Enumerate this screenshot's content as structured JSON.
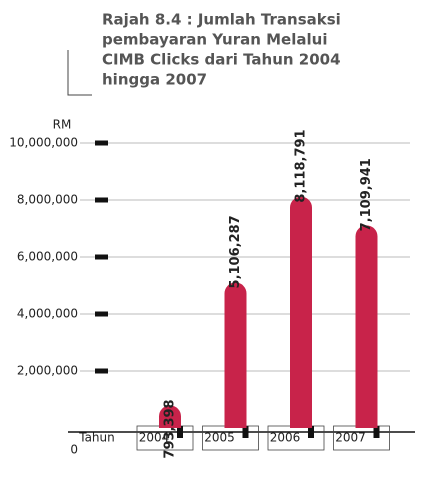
{
  "chart_data": {
    "type": "bar",
    "title_lines": [
      "Rajah 8.4 : Jumlah Transaksi",
      "pembayaran Yuran Melalui",
      "CIMB Clicks dari Tahun 2004",
      "hingga 2007"
    ],
    "y_label": "RM",
    "x_label": "Tahun",
    "categories": [
      "2004",
      "2005",
      "2006",
      "2007"
    ],
    "values": [
      793398,
      5106287,
      8118791,
      7109941
    ],
    "value_labels": [
      "793,398",
      "5,106,287",
      "8,118,791",
      "7,109,941"
    ],
    "color": "#c8234a",
    "ylim": [
      0,
      10000000
    ],
    "yticks": [
      0,
      {
        "value": 2000000,
        "label": "2,000,000"
      },
      {
        "value": 4000000,
        "label": "4,000,000"
      },
      {
        "value": 6000000,
        "label": "6,000,000"
      },
      {
        "value": 8000000,
        "label": "8,000,000"
      },
      {
        "value": 10000000,
        "label": "10,000,000"
      }
    ],
    "grid": true
  }
}
